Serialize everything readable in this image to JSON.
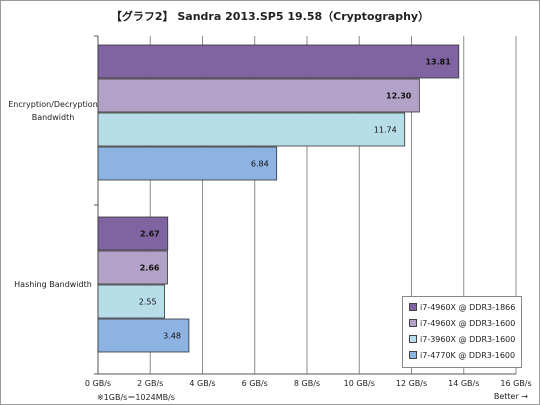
{
  "chart_data": {
    "type": "bar",
    "orientation": "horizontal",
    "title": "【グラフ2】 Sandra 2013.SP5 19.58（Cryptography）",
    "categories": [
      "Encryption/Decryption Bandwidth",
      "Hashing Bandwidth"
    ],
    "series": [
      {
        "name": "i7-4960X @ DDR3-1866",
        "color": "#8064a2",
        "values": [
          13.81,
          2.67
        ],
        "labels": [
          "13.81",
          "2.67"
        ],
        "bold": true
      },
      {
        "name": "i7-4960X @ DDR3-1600",
        "color": "#b3a2c7",
        "values": [
          12.3,
          2.66
        ],
        "labels": [
          "12.30",
          "2.66"
        ],
        "bold": true
      },
      {
        "name": "i7-3960X @ DDR3-1600",
        "color": "#b7dee8",
        "values": [
          11.74,
          2.55
        ],
        "labels": [
          "11.74",
          "2.55"
        ],
        "bold": false
      },
      {
        "name": "i7-4770K @ DDR3-1600",
        "color": "#8db3e2",
        "values": [
          6.84,
          3.48
        ],
        "labels": [
          "6.84",
          "3.48"
        ],
        "bold": false
      }
    ],
    "xlim": [
      0,
      16
    ],
    "xticks": [
      "0 GB/s",
      "2 GB/s",
      "4 GB/s",
      "6 GB/s",
      "8 GB/s",
      "10 GB/s",
      "12 GB/s",
      "14 GB/s",
      "16 GB/s"
    ],
    "grid": true,
    "legend_position": "bottom-right",
    "note": "※1GB/s＝1024MB/s",
    "footer_right": "Better →"
  }
}
